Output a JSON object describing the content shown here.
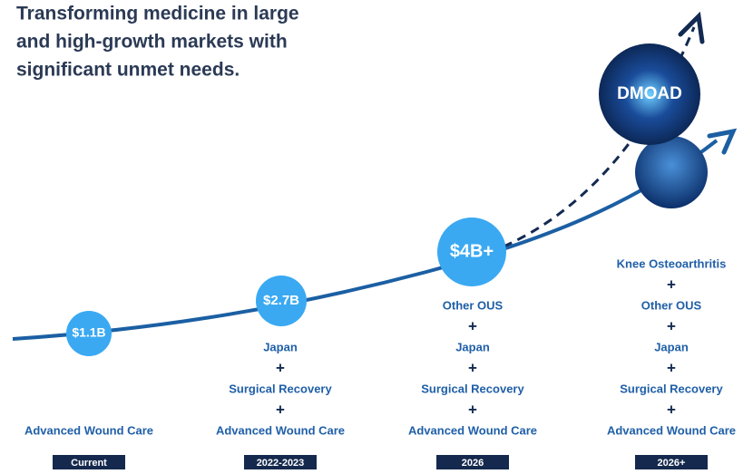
{
  "title_lines": [
    "Transforming medicine in large",
    "and high-growth markets with",
    "significant unmet needs."
  ],
  "separator": "+",
  "pipeline_label": "DMOAD",
  "columns": [
    {
      "value": "$1.1B",
      "markets": [
        "Advanced Wound Care"
      ],
      "period": "Current"
    },
    {
      "value": "$2.7B",
      "markets": [
        "Japan",
        "Surgical Recovery",
        "Advanced Wound Care"
      ],
      "period": "2022-2023"
    },
    {
      "value": "$4B+",
      "markets": [
        "Other OUS",
        "Japan",
        "Surgical Recovery",
        "Advanced Wound Care"
      ],
      "period": "2026"
    },
    {
      "markets": [
        "Knee Osteoarthritis",
        "Other OUS",
        "Japan",
        "Surgical Recovery",
        "Advanced Wound Care"
      ],
      "period": "2026+"
    }
  ]
}
